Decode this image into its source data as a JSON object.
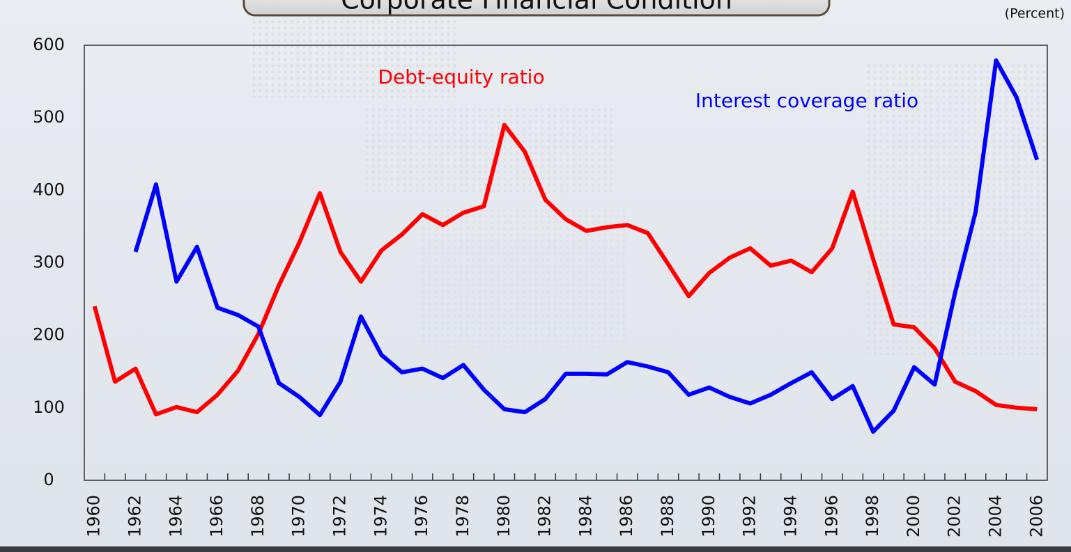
{
  "chart_data": {
    "type": "line",
    "title": "Corporate Financial Condition",
    "unit_label": "(Percent)",
    "categories": [
      "1960",
      null,
      "1962",
      null,
      "1964",
      null,
      "1966",
      null,
      "1968",
      null,
      "1970",
      null,
      "1972",
      null,
      "1974",
      null,
      "1976",
      null,
      "1978",
      null,
      "1980",
      null,
      "1982",
      null,
      "1984",
      null,
      "1986",
      null,
      "1988",
      null,
      "1990",
      null,
      "1992",
      null,
      "1994",
      null,
      "1996",
      null,
      "1998",
      null,
      "2000",
      null,
      "2002",
      null,
      "2004",
      null,
      "2006"
    ],
    "series": [
      {
        "name": "Debt-equity ratio",
        "color": "#ff0000",
        "values": [
          240,
          136,
          154,
          91,
          101,
          94,
          118,
          151,
          202,
          269,
          328,
          396,
          315,
          274,
          317,
          339,
          367,
          352,
          369,
          378,
          490,
          453,
          387,
          360,
          344,
          349,
          352,
          341,
          298,
          254,
          286,
          307,
          320,
          296,
          303,
          287,
          320,
          398,
          305,
          215,
          211,
          182,
          136,
          123,
          104,
          100,
          98
        ]
      },
      {
        "name": "Interest coverage ratio",
        "color": "#0000ff",
        "values": [
          null,
          null,
          315,
          408,
          274,
          322,
          238,
          228,
          212,
          134,
          115,
          90,
          136,
          226,
          173,
          149,
          154,
          141,
          159,
          125,
          98,
          94,
          112,
          147,
          147,
          146,
          163,
          157,
          149,
          118,
          128,
          115,
          106,
          118,
          134,
          149,
          112,
          130,
          67,
          96,
          156,
          132,
          259,
          370,
          579,
          528,
          442
        ]
      }
    ],
    "ylim": [
      0,
      600
    ],
    "yticks": [
      0,
      100,
      200,
      300,
      400,
      500,
      600
    ],
    "grid": false
  }
}
